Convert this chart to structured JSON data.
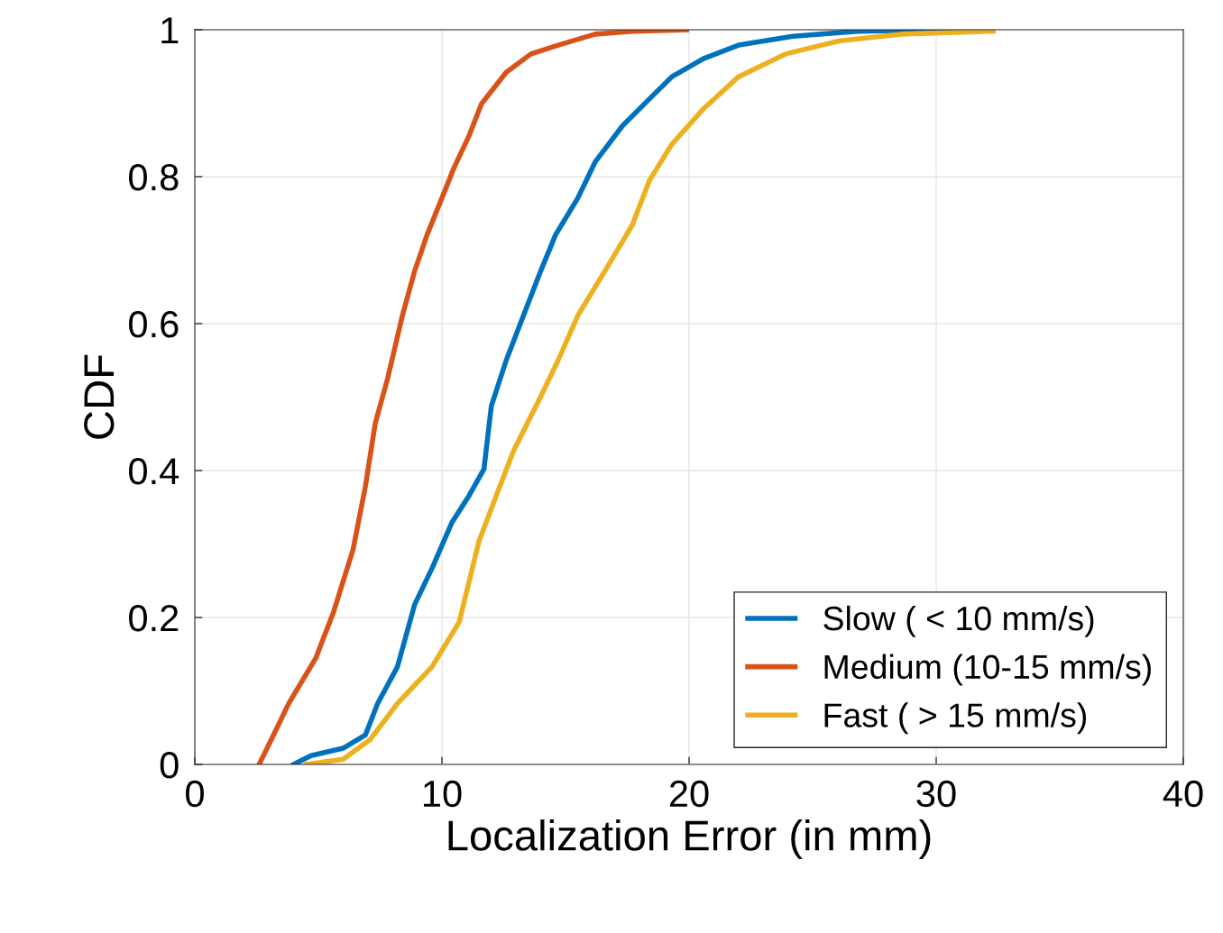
{
  "chart_data": {
    "type": "line",
    "xlabel": "Localization Error (in mm)",
    "ylabel": "CDF",
    "xlim": [
      0,
      40
    ],
    "xticks": [
      0,
      10,
      20,
      30,
      40
    ],
    "ylim": [
      0,
      1
    ],
    "yticks": [
      0,
      0.2,
      0.4,
      0.6,
      0.8,
      1
    ],
    "grid": true,
    "legend": "bottom right",
    "series": [
      {
        "name": "Slow ( < 10 mm/s)",
        "color": "#0072bd",
        "x": [
          4.0,
          4.7,
          6.0,
          6.9,
          7.4,
          8.2,
          8.9,
          9.6,
          10.4,
          11.1,
          11.7,
          12.0,
          12.6,
          13.3,
          14.0,
          14.6,
          15.5,
          16.2,
          17.3,
          18.4,
          19.3,
          20.6,
          22.0,
          24.2,
          26.8,
          30.6
        ],
        "values": [
          0,
          0.012,
          0.022,
          0.04,
          0.083,
          0.133,
          0.218,
          0.267,
          0.329,
          0.366,
          0.402,
          0.488,
          0.55,
          0.611,
          0.672,
          0.721,
          0.771,
          0.82,
          0.869,
          0.906,
          0.936,
          0.961,
          0.979,
          0.991,
          0.998,
          1.0
        ]
      },
      {
        "name": "Medium (10-15 mm/s)",
        "color": "#d95319",
        "x": [
          2.6,
          3.1,
          3.8,
          4.9,
          5.6,
          6.4,
          6.9,
          7.3,
          7.8,
          8.4,
          8.9,
          9.4,
          10.0,
          10.5,
          11.1,
          11.6,
          12.6,
          13.6,
          14.7,
          16.2,
          17.7,
          19.9
        ],
        "values": [
          0,
          0.034,
          0.083,
          0.145,
          0.206,
          0.292,
          0.378,
          0.464,
          0.525,
          0.611,
          0.672,
          0.721,
          0.771,
          0.813,
          0.856,
          0.899,
          0.942,
          0.967,
          0.979,
          0.994,
          0.998,
          1.0
        ]
      },
      {
        "name": "Fast ( > 15 mm/s)",
        "color": "#edb120",
        "x": [
          4.5,
          6.0,
          7.1,
          8.2,
          9.6,
          10.7,
          11.5,
          12.2,
          12.9,
          14.0,
          14.7,
          15.5,
          16.6,
          17.7,
          18.4,
          19.3,
          20.6,
          22.0,
          23.9,
          26.1,
          28.6,
          32.3
        ],
        "values": [
          0,
          0.007,
          0.034,
          0.083,
          0.133,
          0.194,
          0.304,
          0.366,
          0.427,
          0.501,
          0.55,
          0.611,
          0.672,
          0.734,
          0.795,
          0.844,
          0.893,
          0.936,
          0.967,
          0.985,
          0.994,
          0.998
        ]
      }
    ]
  }
}
